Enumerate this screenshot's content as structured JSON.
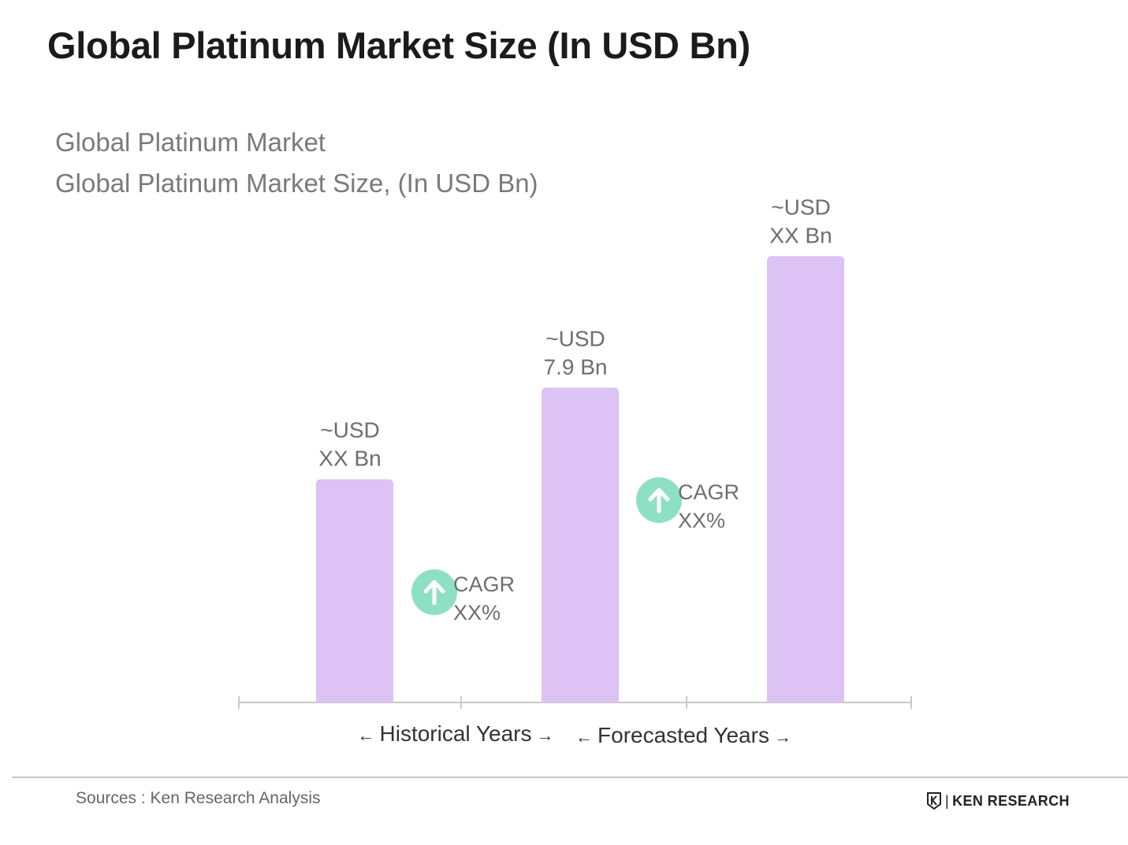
{
  "header": {
    "title": "Global Platinum Market Size (In USD Bn)",
    "subtitle_line1": "Global Platinum Market",
    "subtitle_line2": "Global Platinum Market Size, (In USD Bn)"
  },
  "chart_data": {
    "type": "bar",
    "title": "",
    "xlabel": "",
    "ylabel": "",
    "grid": false,
    "bar_color": "#dcc2f5",
    "axis_color": "#c8c8c8",
    "categories": [
      "",
      "",
      ""
    ],
    "values": [
      5.6,
      7.9,
      11.2
    ],
    "data_labels": [
      [
        "~USD",
        "XX Bn"
      ],
      [
        "~USD",
        "7.9 Bn"
      ],
      [
        "~USD",
        "XX Bn"
      ]
    ],
    "ylim": [
      0,
      11.7
    ],
    "cagr_markers": [
      {
        "icon": "arrow-up-icon",
        "color": "#8ee0c4",
        "line1": "CAGR",
        "line2": "XX%"
      },
      {
        "icon": "arrow-up-icon",
        "color": "#8ee0c4",
        "line1": "CAGR",
        "line2": "XX%"
      }
    ],
    "period_labels": [
      {
        "left_arrow": "←",
        "text": "Historical Years",
        "right_arrow": "→"
      },
      {
        "left_arrow": "←",
        "text": "Forecasted Years",
        "right_arrow": "→"
      }
    ]
  },
  "footer": {
    "source": "Sources : Ken Research Analysis",
    "brand_name": "KEN RESEARCH",
    "brand_logo_icon": "ken-research-logo-icon"
  }
}
